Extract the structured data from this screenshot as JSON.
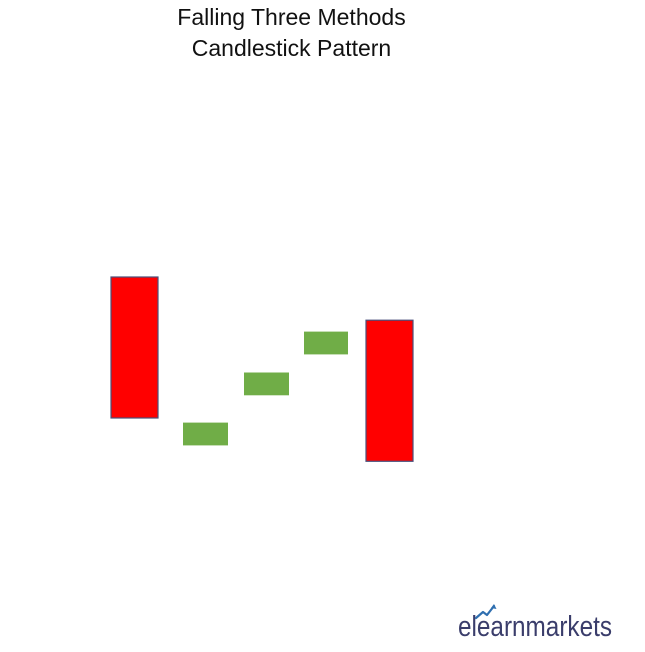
{
  "title": {
    "line1": "Falling Three Methods",
    "line2": "Candlestick Pattern"
  },
  "pattern": {
    "candles": [
      {
        "type": "bearish",
        "open": 10.0,
        "close": 6.9,
        "color": "#ff0000"
      },
      {
        "type": "bullish",
        "open": 6.3,
        "close": 6.8,
        "color": "#70ad47"
      },
      {
        "type": "bullish",
        "open": 7.4,
        "close": 7.9,
        "color": "#70ad47"
      },
      {
        "type": "bullish",
        "open": 8.3,
        "close": 8.8,
        "color": "#70ad47"
      },
      {
        "type": "bearish",
        "open": 9.05,
        "close": 5.95,
        "color": "#ff0000"
      }
    ],
    "border_color": "#4a4f7a"
  },
  "logo": {
    "text": "elearnmarkets",
    "text_color": "#3a3d6b",
    "accent_color": "#2f6fb0"
  }
}
